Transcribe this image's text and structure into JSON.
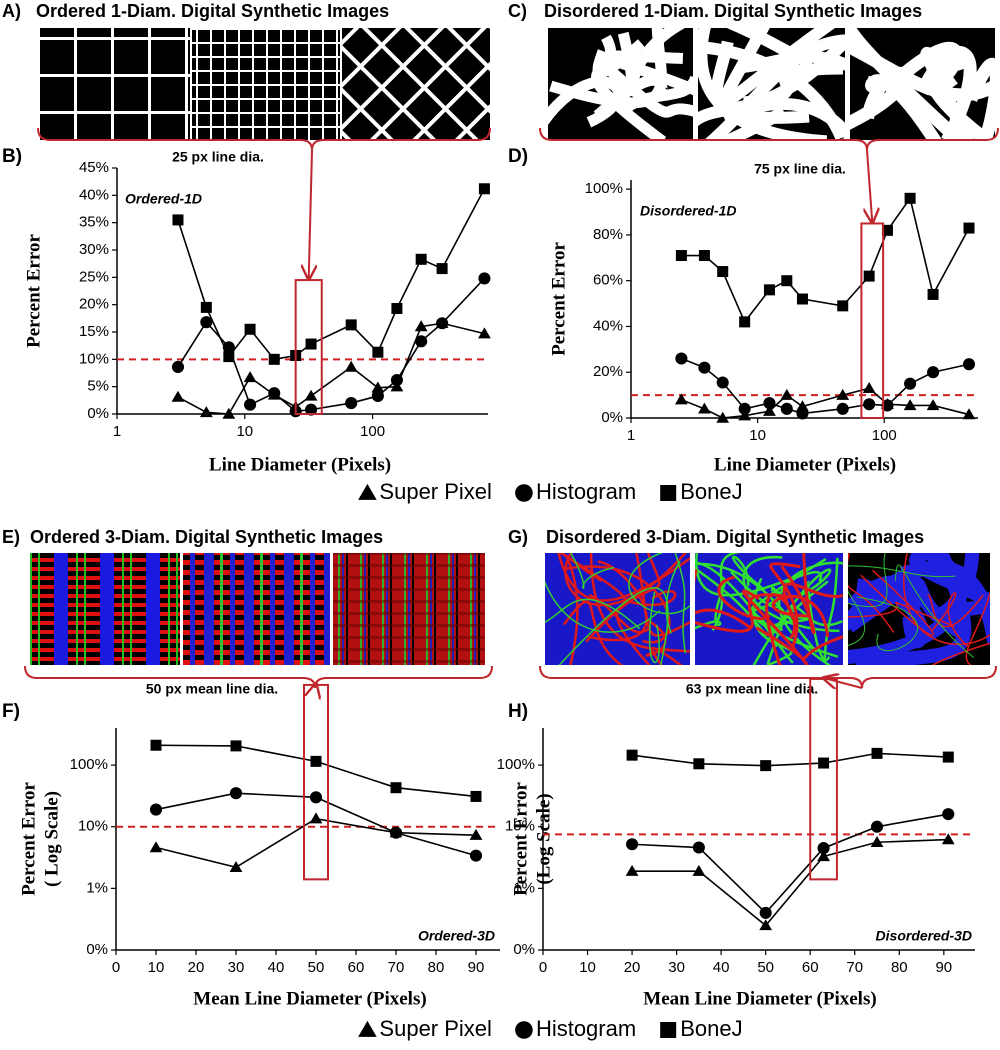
{
  "image_panels": [
    {
      "label": "A)",
      "title": "Ordered 1-Diam. Digital Synthetic Images",
      "annotation": "25 px line dia."
    },
    {
      "label": "C)",
      "title": "Disordered 1-Diam. Digital Synthetic Images",
      "annotation": "75 px line dia."
    },
    {
      "label": "E)",
      "title": "Ordered 3-Diam. Digital Synthetic Images",
      "annotation": "50 px mean line dia."
    },
    {
      "label": "G)",
      "title": "Disordered 3-Diam. Digital Synthetic Images",
      "annotation": "63 px mean line dia."
    }
  ],
  "chart_data": [
    {
      "type": "line",
      "panel_label": "B)",
      "inset_label": "Ordered-1D",
      "xlabel": "Line Diameter (Pixels)",
      "ylabel": [
        "Percent Error"
      ],
      "xscale": "log",
      "xlim": [
        1,
        800
      ],
      "xticks": [
        1,
        10,
        100
      ],
      "ylim": [
        0,
        45
      ],
      "yticks": [
        {
          "value": 0,
          "label": "0%"
        },
        {
          "value": 5,
          "label": "5%"
        },
        {
          "value": 10,
          "label": "10%"
        },
        {
          "value": 15,
          "label": "15%"
        },
        {
          "value": 20,
          "label": "20%"
        },
        {
          "value": 25,
          "label": "25%"
        },
        {
          "value": 30,
          "label": "30%"
        },
        {
          "value": 35,
          "label": "35%"
        },
        {
          "value": 40,
          "label": "40%"
        },
        {
          "value": 45,
          "label": "45%"
        }
      ],
      "ref_line": 10,
      "highlight": {
        "x": [
          25,
          40
        ],
        "y": [
          0,
          24.5
        ]
      },
      "legend": "bottom",
      "x": [
        3,
        5,
        7.5,
        11,
        17,
        25,
        33,
        68,
        110,
        155,
        240,
        350,
        750
      ],
      "series": [
        {
          "name": "Super Pixel",
          "marker": "triangle",
          "color": "#000000",
          "values": [
            3.1,
            0.3,
            0,
            6.7,
            3.5,
            1.3,
            3.3,
            8.6,
            4.8,
            5,
            16,
            16.6,
            14.7
          ]
        },
        {
          "name": "Histogram",
          "marker": "circle",
          "color": "#000000",
          "values": [
            8.6,
            16.8,
            12.2,
            1.7,
            3.8,
            0.5,
            0.8,
            2,
            3.3,
            6.2,
            13.3,
            16.6,
            24.8
          ]
        },
        {
          "name": "BoneJ",
          "marker": "square",
          "color": "#000000",
          "values": [
            35.5,
            19.5,
            10.5,
            15.5,
            10,
            10.7,
            12.8,
            16.3,
            11.3,
            19.3,
            28.3,
            26.6,
            41.2
          ]
        }
      ]
    },
    {
      "type": "line",
      "panel_label": "D)",
      "inset_label": "Disordered-1D",
      "xlabel": "Line Diameter (Pixels)",
      "ylabel": [
        "Percent Error"
      ],
      "xscale": "log",
      "xlim": [
        1,
        550
      ],
      "xticks": [
        1,
        10,
        100
      ],
      "ylim": [
        0,
        104
      ],
      "yticks": [
        {
          "value": 0,
          "label": "0%"
        },
        {
          "value": 20,
          "label": "20%"
        },
        {
          "value": 40,
          "label": "40%"
        },
        {
          "value": 60,
          "label": "60%"
        },
        {
          "value": 80,
          "label": "80%"
        },
        {
          "value": 100,
          "label": "100%"
        }
      ],
      "ref_line": 10,
      "highlight": {
        "x": [
          66,
          98
        ],
        "y": [
          0,
          85
        ]
      },
      "x": [
        2.5,
        3.8,
        5.3,
        7.9,
        12.4,
        17,
        22.6,
        47,
        76,
        106,
        160,
        243,
        467
      ],
      "series": [
        {
          "name": "Super Pixel",
          "marker": "triangle",
          "color": "#000000",
          "values": [
            8,
            4,
            0,
            1,
            3,
            10,
            5,
            10,
            13,
            6,
            5.5,
            5.5,
            1.5
          ]
        },
        {
          "name": "Histogram",
          "marker": "circle",
          "color": "#000000",
          "values": [
            26,
            22,
            15.5,
            4,
            6.5,
            4,
            2,
            4,
            6,
            5.5,
            15,
            20,
            23.5
          ]
        },
        {
          "name": "BoneJ",
          "marker": "square",
          "color": "#000000",
          "values": [
            71,
            71,
            64,
            42,
            56,
            60,
            52,
            49,
            62,
            82,
            96,
            54,
            83
          ]
        }
      ]
    },
    {
      "type": "line",
      "panel_label": "F)",
      "inset_label": "Ordered-3D",
      "xlabel": "Mean Line Diameter (Pixels)",
      "ylabel": [
        "Percent Error",
        "( Log Scale)"
      ],
      "xlim": [
        0,
        96
      ],
      "xticks": [
        0,
        10,
        20,
        30,
        40,
        50,
        60,
        70,
        80,
        90
      ],
      "yscale": "log",
      "ylim": [
        0.1,
        400
      ],
      "yticks": [
        {
          "value": 0.1,
          "label": "0%"
        },
        {
          "value": 1,
          "label": "1%"
        },
        {
          "value": 10,
          "label": "10%"
        },
        {
          "value": 100,
          "label": "100%"
        }
      ],
      "ref_line": 10,
      "highlight": {
        "x": [
          47,
          53
        ],
        "y": [
          1.4,
          2000
        ]
      },
      "legend": "bottom",
      "x": [
        10,
        30,
        50,
        70,
        90
      ],
      "series": [
        {
          "name": "Super Pixel",
          "marker": "triangle",
          "color": "#000000",
          "values": [
            4.6,
            2.2,
            13.5,
            8,
            7.3
          ]
        },
        {
          "name": "Histogram",
          "marker": "circle",
          "color": "#000000",
          "values": [
            19,
            35,
            30,
            8,
            3.4
          ]
        },
        {
          "name": "BoneJ",
          "marker": "square",
          "color": "#000000",
          "values": [
            210,
            205,
            115,
            43,
            31
          ]
        }
      ]
    },
    {
      "type": "line",
      "panel_label": "H)",
      "inset_label": "Disordered-3D",
      "xlabel": "Mean Line Diameter (Pixels)",
      "ylabel": [
        "Percent Error",
        "(Log Scale)"
      ],
      "xlim": [
        0,
        97
      ],
      "xticks": [
        0,
        10,
        20,
        30,
        40,
        50,
        60,
        70,
        80,
        90
      ],
      "yscale": "log",
      "ylim": [
        0.1,
        400
      ],
      "yticks": [
        {
          "value": 0.1,
          "label": "0%"
        },
        {
          "value": 1,
          "label": "1%"
        },
        {
          "value": 10,
          "label": "10%"
        },
        {
          "value": 100,
          "label": "100%"
        }
      ],
      "ref_line": 7.5,
      "highlight": {
        "x": [
          60,
          66
        ],
        "y": [
          1.4,
          2500
        ]
      },
      "x": [
        20,
        35,
        50,
        63,
        75,
        91
      ],
      "series": [
        {
          "name": "Super Pixel",
          "marker": "triangle",
          "color": "#000000",
          "values": [
            1.9,
            1.9,
            0.25,
            3.3,
            5.6,
            6.2
          ]
        },
        {
          "name": "Histogram",
          "marker": "circle",
          "color": "#000000",
          "values": [
            5.2,
            4.6,
            0.4,
            4.5,
            10,
            16
          ]
        },
        {
          "name": "BoneJ",
          "marker": "square",
          "color": "#000000",
          "values": [
            145,
            105,
            98,
            108,
            155,
            135
          ]
        }
      ]
    }
  ]
}
